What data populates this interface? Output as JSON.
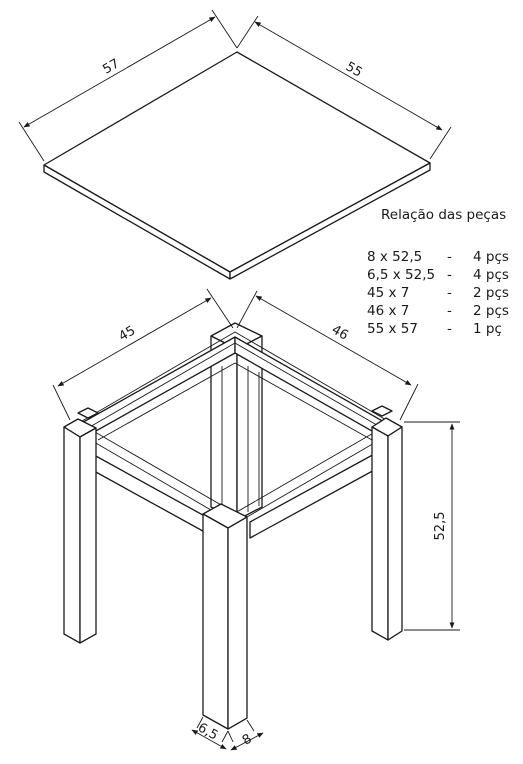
{
  "dimensions": {
    "top_width": "57",
    "top_depth": "55",
    "frame_width": "45",
    "frame_depth": "46",
    "leg_height": "52,5",
    "leg_side_a": "6,5",
    "leg_side_b": "8"
  },
  "parts_list": {
    "title": "Relação das peças",
    "rows": [
      {
        "size": "8 x 52,5",
        "sep": "-",
        "qty": "4 pçs"
      },
      {
        "size": "6,5 x 52,5",
        "sep": "-",
        "qty": "4 pçs"
      },
      {
        "size": "45 x 7",
        "sep": "-",
        "qty": "2 pçs"
      },
      {
        "size": "46 x 7",
        "sep": "-",
        "qty": "2 pçs"
      },
      {
        "size": "55 x 57",
        "sep": "-",
        "qty": "1 pç"
      }
    ]
  }
}
